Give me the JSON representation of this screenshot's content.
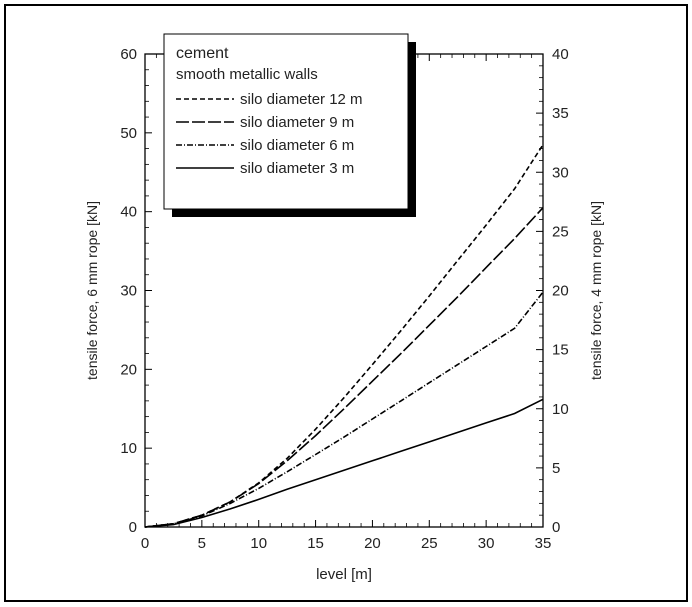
{
  "chart_data": {
    "type": "line",
    "title": "",
    "xlabel": "level [m]",
    "ylabel": "tensile force, 6 mm rope [kN]",
    "y2label": "tensile force, 4 mm rope [kN]",
    "xlim": [
      0,
      35
    ],
    "ylim": [
      0,
      60
    ],
    "y2lim": [
      0,
      40
    ],
    "x_ticks": [
      0,
      5,
      10,
      15,
      20,
      25,
      30,
      35
    ],
    "y_ticks": [
      0,
      10,
      20,
      30,
      40,
      50,
      60
    ],
    "y2_ticks": [
      0,
      5,
      10,
      15,
      20,
      25,
      30,
      35,
      40
    ],
    "grid": false,
    "legend_position": "top-left",
    "legend_header": [
      "cement",
      "smooth metallic walls"
    ],
    "x": [
      0,
      2.5,
      5,
      7.5,
      10,
      12.5,
      15,
      17.5,
      20,
      22.5,
      25,
      27.5,
      30,
      32.5,
      35
    ],
    "series": [
      {
        "name": "silo diameter 12 m",
        "dash": "dashed",
        "values": [
          0,
          0.4,
          1.5,
          3.2,
          5.6,
          8.7,
          12.4,
          16.4,
          20.6,
          24.9,
          29.3,
          33.8,
          38.3,
          42.9,
          48.5
        ]
      },
      {
        "name": "silo diameter 9 m",
        "dash": "longdash",
        "values": [
          0,
          0.4,
          1.5,
          3.2,
          5.5,
          8.4,
          11.6,
          15.0,
          18.5,
          22.0,
          25.6,
          29.2,
          32.9,
          36.6,
          40.5
        ]
      },
      {
        "name": "silo diameter 6 m",
        "dash": "dashdot",
        "values": [
          0,
          0.4,
          1.4,
          3.0,
          4.9,
          7.0,
          9.2,
          11.4,
          13.7,
          16.0,
          18.3,
          20.6,
          22.9,
          25.2,
          29.8
        ]
      },
      {
        "name": "silo diameter 3 m",
        "dash": "solid",
        "values": [
          0,
          0.3,
          1.2,
          2.3,
          3.5,
          4.8,
          6.0,
          7.2,
          8.4,
          9.6,
          10.8,
          12.0,
          13.2,
          14.4,
          16.2
        ]
      }
    ]
  }
}
